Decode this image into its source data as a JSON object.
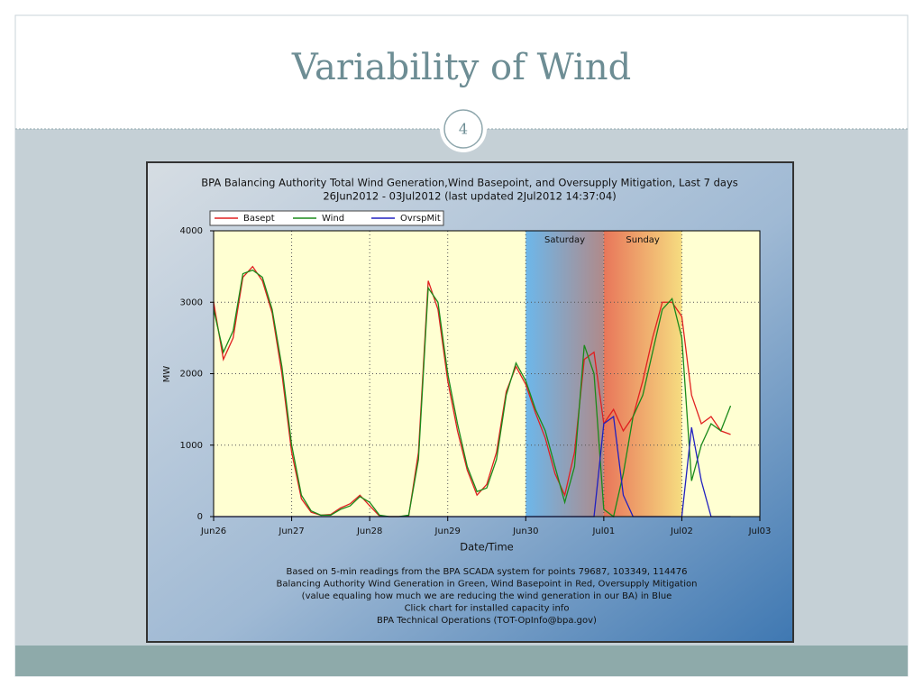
{
  "slide_title": "Variability of Wind",
  "slide_number": "4",
  "chart_data": {
    "type": "line",
    "title": "BPA Balancing Authority Total Wind Generation,Wind Basepoint, and Oversupply Mitigation, Last 7 days",
    "subtitle": "26Jun2012 - 03Jul2012 (last updated 2Jul2012 14:37:04)",
    "x_label": "Date/Time",
    "y_label": "MW",
    "x": [
      0,
      0.125,
      0.25,
      0.375,
      0.5,
      0.625,
      0.75,
      0.875,
      1,
      1.125,
      1.25,
      1.375,
      1.5,
      1.625,
      1.75,
      1.875,
      2,
      2.125,
      2.25,
      2.375,
      2.5,
      2.625,
      2.75,
      2.875,
      3,
      3.125,
      3.25,
      3.375,
      3.5,
      3.625,
      3.75,
      3.875,
      4,
      4.125,
      4.25,
      4.375,
      4.5,
      4.625,
      4.75,
      4.875,
      5,
      5.125,
      5.25,
      5.375,
      5.5,
      5.625,
      5.75,
      5.875,
      6,
      6.125,
      6.25,
      6.375,
      6.5,
      6.625
    ],
    "series": [
      {
        "name": "Basept",
        "color": "#e02020",
        "values": [
          3000,
          2200,
          2500,
          3350,
          3500,
          3300,
          2850,
          2000,
          900,
          250,
          60,
          20,
          30,
          120,
          180,
          300,
          150,
          10,
          0,
          0,
          10,
          900,
          3300,
          2900,
          1900,
          1200,
          650,
          300,
          450,
          900,
          1750,
          2100,
          1850,
          1450,
          1100,
          600,
          300,
          900,
          2200,
          2300,
          1300,
          1500,
          1200,
          1400,
          1900,
          2500,
          3000,
          3000,
          2800,
          1700,
          1300,
          1400,
          1200,
          1150
        ]
      },
      {
        "name": "Wind",
        "color": "#1a8a1a",
        "values": [
          2900,
          2300,
          2600,
          3400,
          3450,
          3350,
          2900,
          2100,
          1000,
          300,
          80,
          20,
          20,
          100,
          150,
          280,
          200,
          20,
          0,
          0,
          20,
          800,
          3200,
          3000,
          2000,
          1300,
          700,
          350,
          400,
          800,
          1700,
          2150,
          1900,
          1500,
          1200,
          700,
          200,
          700,
          2400,
          2000,
          100,
          0,
          600,
          1400,
          1700,
          2300,
          2900,
          3050,
          2500,
          500,
          1000,
          1300,
          1200,
          1550
        ]
      },
      {
        "name": "OvrspMit",
        "color": "#2020c0",
        "values": [
          0,
          0,
          0,
          0,
          0,
          0,
          0,
          0,
          0,
          0,
          0,
          0,
          0,
          0,
          0,
          0,
          0,
          0,
          0,
          0,
          0,
          0,
          0,
          0,
          0,
          0,
          0,
          0,
          0,
          0,
          0,
          0,
          0,
          0,
          0,
          0,
          0,
          0,
          0,
          0,
          1300,
          1400,
          300,
          0,
          0,
          0,
          0,
          0,
          0,
          1250,
          500,
          0,
          0,
          0
        ]
      }
    ],
    "shaded_regions": [
      {
        "label": "Saturday",
        "start": 4,
        "end": 5,
        "colors": [
          "#6db7ea",
          "#b08a8a"
        ]
      },
      {
        "label": "Sunday",
        "start": 5,
        "end": 6,
        "colors": [
          "#e8765a",
          "#f6dc80"
        ]
      }
    ],
    "xlim": [
      0,
      7
    ],
    "ylim": [
      0,
      4000
    ],
    "xticks": [
      {
        "value": 0,
        "label": "Jun26"
      },
      {
        "value": 1,
        "label": "Jun27"
      },
      {
        "value": 2,
        "label": "Jun28"
      },
      {
        "value": 3,
        "label": "Jun29"
      },
      {
        "value": 4,
        "label": "Jun30"
      },
      {
        "value": 5,
        "label": "Jul01"
      },
      {
        "value": 6,
        "label": "Jul02"
      },
      {
        "value": 7,
        "label": "Jul03"
      }
    ],
    "yticks": [
      0,
      1000,
      2000,
      3000,
      4000
    ],
    "grid": true,
    "legend": "top-left",
    "footnotes": [
      "Based on 5-min readings from the BPA SCADA system for points 79687, 103349, 114476",
      "Balancing Authority Wind Generation in Green, Wind Basepoint in Red, Oversupply Mitigation",
      "(value equaling how much we are reducing the wind generation in our BA) in Blue",
      "Click chart for installed capacity info",
      "BPA Technical Operations (TOT-OpInfo@bpa.gov)"
    ]
  }
}
